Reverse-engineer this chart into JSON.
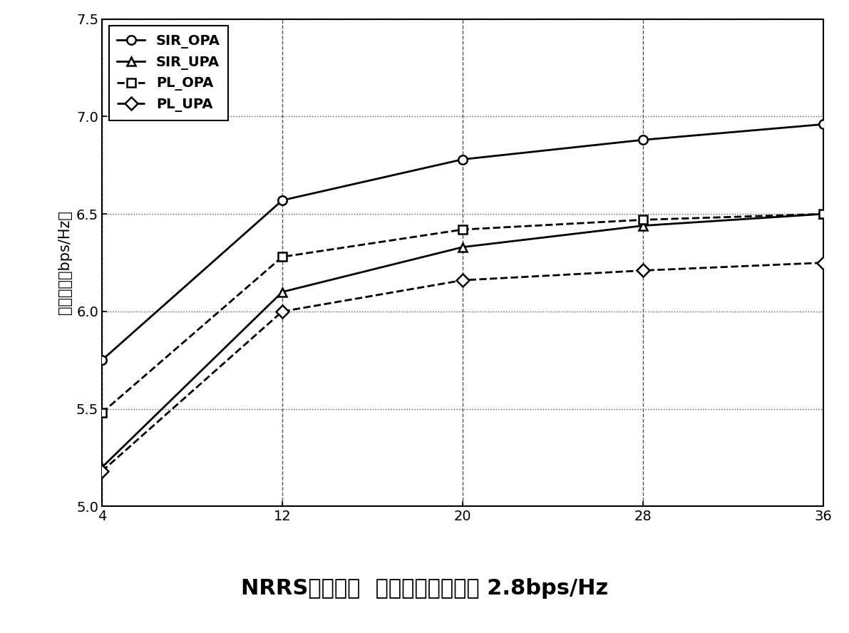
{
  "x": [
    4,
    12,
    20,
    28,
    36
  ],
  "SIR_OPA": [
    5.75,
    6.57,
    6.78,
    6.88,
    6.96
  ],
  "SIR_UPA": [
    5.2,
    6.1,
    6.33,
    6.44,
    6.5
  ],
  "PL_OPA": [
    5.48,
    6.28,
    6.42,
    6.47,
    6.5
  ],
  "PL_UPA": [
    5.18,
    6.0,
    6.16,
    6.21,
    6.25
  ],
  "ylim": [
    5.0,
    7.5
  ],
  "xlim_left": 4,
  "xlim_right": 36,
  "xticks": [
    4,
    12,
    20,
    28,
    36
  ],
  "yticks": [
    5.0,
    5.5,
    6.0,
    6.5,
    7.0,
    7.5
  ],
  "ylabel": "平均容量（bps/Hz）",
  "xlabel_below": "NRRS的数量；  直接传输的容量： 2.8bps/Hz",
  "legend_labels": [
    "SIR_OPA",
    "SIR_UPA",
    "PL_OPA",
    "PL_UPA"
  ],
  "line_styles": [
    "-",
    "-",
    "--",
    "--"
  ],
  "markers": [
    "o",
    "^",
    "s",
    "D"
  ],
  "marker_size": 9,
  "linewidth": 2.0,
  "tick_fontsize": 14,
  "ylabel_fontsize": 15,
  "legend_fontsize": 14,
  "xlabel_below_fontsize": 22,
  "grid_color": "#555555",
  "background_color": "#ffffff"
}
